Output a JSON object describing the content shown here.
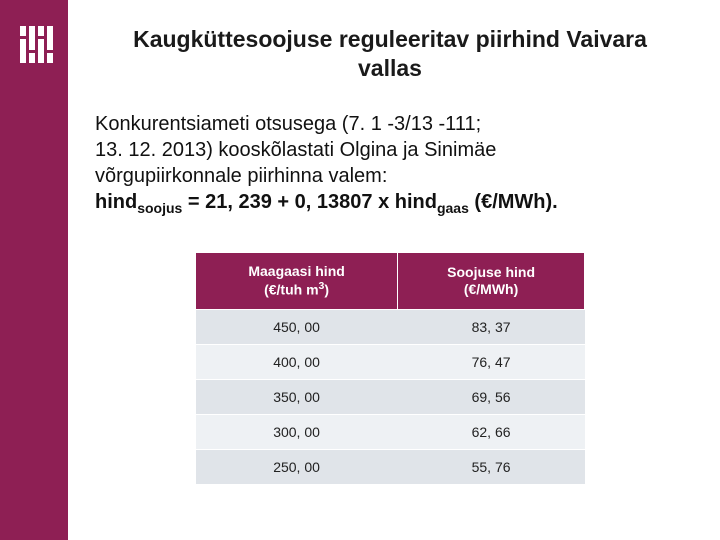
{
  "colors": {
    "brand": "#8e1f54",
    "row_odd": "#e0e4e9",
    "row_even": "#eef1f4",
    "header_text": "#ffffff",
    "body_text": "#111111"
  },
  "title": "Kaugküttesoojuse reguleeritav piirhind Vaivara vallas",
  "paragraph": {
    "line1": "Konkurentsiameti otsusega (7. 1 -3/13 -111;",
    "line2": "13. 12. 2013) kooskõlastati Olgina ja Sinimäe",
    "line3": "võrgupiirkonnale piirhinna valem:",
    "formula_prefix": "hind",
    "formula_sub1": "soojus",
    "formula_mid": " = 21, 239 + 0, 13807 x hind",
    "formula_sub2": "gaas",
    "formula_suffix": " (€/MWh)."
  },
  "table": {
    "headers": {
      "col1_line1": "Maagaasi hind",
      "col1_line2_pre": "(€/tuh m",
      "col1_line2_sup": "3",
      "col1_line2_post": ")",
      "col2_line1": "Soojuse hind",
      "col2_line2": "(€/MWh)"
    },
    "rows": [
      {
        "gas": "450, 00",
        "heat": "83, 37"
      },
      {
        "gas": "400, 00",
        "heat": "76, 47"
      },
      {
        "gas": "350, 00",
        "heat": "69, 56"
      },
      {
        "gas": "300, 00",
        "heat": "62, 66"
      },
      {
        "gas": "250, 00",
        "heat": "55, 76"
      }
    ]
  }
}
